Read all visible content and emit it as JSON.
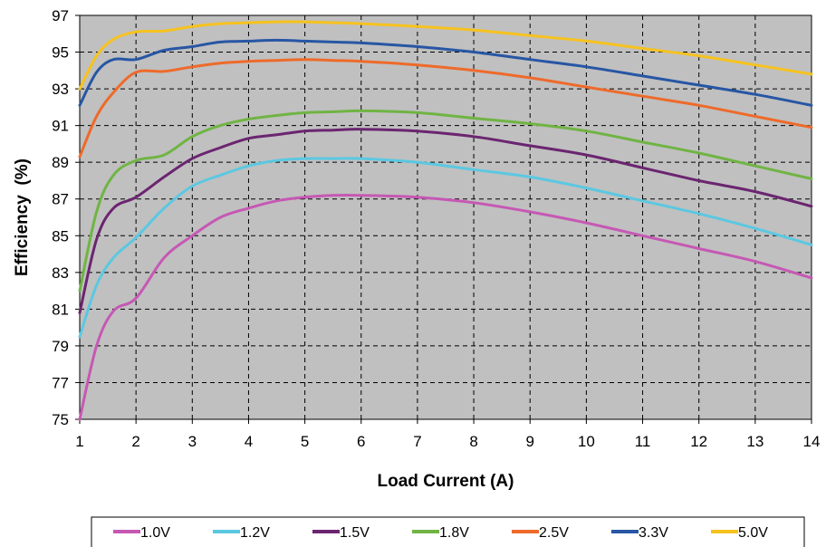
{
  "chart_data": {
    "type": "line",
    "title": "",
    "xlabel": "Load Current (A)",
    "ylabel": "Efficiency  (%)",
    "xlim": [
      1,
      14
    ],
    "ylim": [
      75,
      97
    ],
    "xticks": [
      1,
      2,
      3,
      4,
      5,
      6,
      7,
      8,
      9,
      10,
      11,
      12,
      13,
      14
    ],
    "yticks": [
      75,
      77,
      79,
      81,
      83,
      85,
      87,
      89,
      91,
      93,
      95,
      97
    ],
    "grid": true,
    "legend_position": "bottom",
    "plot_background": "#c0c0c0",
    "series": [
      {
        "name": "1.0V",
        "color": "#c658b4",
        "x": [
          1,
          1.3,
          1.6,
          2,
          2.5,
          3,
          3.5,
          4,
          4.5,
          5,
          5.5,
          6,
          7,
          8,
          9,
          10,
          11,
          12,
          13,
          14
        ],
        "y": [
          75.0,
          79.0,
          80.9,
          81.6,
          83.8,
          85.0,
          86.0,
          86.5,
          86.9,
          87.1,
          87.2,
          87.2,
          87.1,
          86.8,
          86.3,
          85.7,
          85.0,
          84.3,
          83.6,
          82.7
        ]
      },
      {
        "name": "1.2V",
        "color": "#5bc8e1",
        "x": [
          1,
          1.3,
          1.6,
          2,
          2.5,
          3,
          3.5,
          4,
          4.5,
          5,
          5.5,
          6,
          7,
          8,
          9,
          10,
          11,
          12,
          13,
          14
        ],
        "y": [
          79.5,
          82.3,
          83.8,
          84.9,
          86.5,
          87.7,
          88.3,
          88.8,
          89.1,
          89.2,
          89.2,
          89.2,
          89.0,
          88.6,
          88.2,
          87.6,
          86.9,
          86.2,
          85.4,
          84.5
        ]
      },
      {
        "name": "1.5V",
        "color": "#6b2570",
        "x": [
          1,
          1.3,
          1.6,
          2,
          2.5,
          3,
          3.5,
          4,
          4.5,
          5,
          5.5,
          6,
          7,
          8,
          9,
          10,
          11,
          12,
          13,
          14
        ],
        "y": [
          80.8,
          84.8,
          86.5,
          87.1,
          88.2,
          89.2,
          89.8,
          90.3,
          90.5,
          90.7,
          90.75,
          90.8,
          90.7,
          90.4,
          89.9,
          89.4,
          88.7,
          88.0,
          87.4,
          86.6
        ]
      },
      {
        "name": "1.8V",
        "color": "#70b444",
        "x": [
          1,
          1.3,
          1.6,
          2,
          2.5,
          3,
          3.5,
          4,
          4.5,
          5,
          5.5,
          6,
          7,
          8,
          9,
          10,
          11,
          12,
          13,
          14
        ],
        "y": [
          82.0,
          86.3,
          88.3,
          89.1,
          89.4,
          90.4,
          91.0,
          91.35,
          91.55,
          91.7,
          91.75,
          91.8,
          91.7,
          91.4,
          91.1,
          90.7,
          90.1,
          89.5,
          88.8,
          88.1
        ]
      },
      {
        "name": "2.5V",
        "color": "#ee6a2a",
        "x": [
          1,
          1.3,
          1.6,
          2,
          2.5,
          3,
          3.5,
          4,
          4.5,
          5,
          5.5,
          6,
          7,
          8,
          9,
          10,
          11,
          12,
          13,
          14
        ],
        "y": [
          89.3,
          91.5,
          92.8,
          93.9,
          93.95,
          94.2,
          94.4,
          94.5,
          94.55,
          94.6,
          94.55,
          94.5,
          94.3,
          94.0,
          93.6,
          93.1,
          92.6,
          92.1,
          91.5,
          90.9
        ]
      },
      {
        "name": "3.3V",
        "color": "#2756a4",
        "x": [
          1,
          1.3,
          1.6,
          2,
          2.5,
          3,
          3.5,
          4,
          4.5,
          5,
          5.5,
          6,
          7,
          8,
          9,
          10,
          11,
          12,
          13,
          14
        ],
        "y": [
          92.1,
          93.9,
          94.6,
          94.6,
          95.1,
          95.3,
          95.55,
          95.6,
          95.65,
          95.6,
          95.55,
          95.5,
          95.3,
          95.0,
          94.6,
          94.2,
          93.7,
          93.2,
          92.7,
          92.1
        ]
      },
      {
        "name": "5.0V",
        "color": "#f6c21e",
        "x": [
          1,
          1.3,
          1.6,
          2,
          2.5,
          3,
          3.5,
          4,
          4.5,
          5,
          5.5,
          6,
          7,
          8,
          9,
          10,
          11,
          12,
          13,
          14
        ],
        "y": [
          93.0,
          94.8,
          95.7,
          96.1,
          96.15,
          96.4,
          96.55,
          96.6,
          96.65,
          96.65,
          96.6,
          96.55,
          96.4,
          96.2,
          95.9,
          95.6,
          95.2,
          94.8,
          94.3,
          93.8
        ]
      }
    ]
  }
}
